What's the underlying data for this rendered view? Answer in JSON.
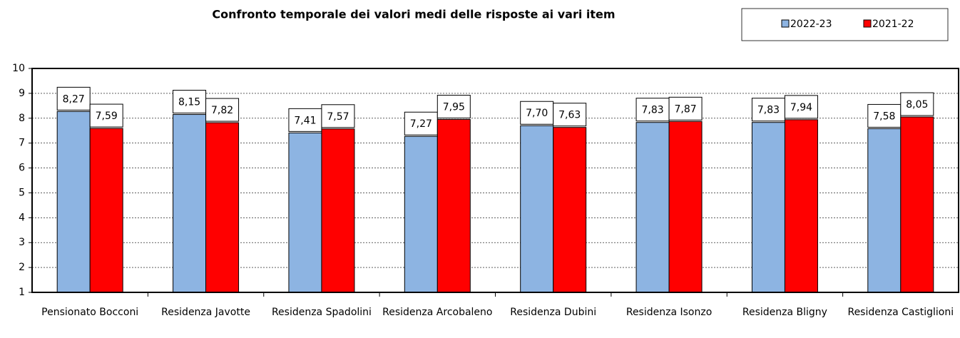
{
  "chart_data": {
    "type": "bar",
    "title": "Confronto temporale dei valori medi delle risposte ai vari item",
    "categories": [
      "Pensionato Bocconi",
      "Residenza Javotte",
      "Residenza Spadolini",
      "Residenza Arcobaleno",
      "Residenza Dubini",
      "Residenza Isonzo",
      "Residenza Bligny",
      "Residenza Castiglioni"
    ],
    "series": [
      {
        "name": "2022-23",
        "color": "#8db4e2",
        "values": [
          8.27,
          8.15,
          7.41,
          7.27,
          7.7,
          7.83,
          7.83,
          7.58
        ],
        "value_labels": [
          "8,27",
          "8,15",
          "7,41",
          "7,27",
          "7,70",
          "7,83",
          "7,83",
          "7,58"
        ]
      },
      {
        "name": "2021-22",
        "color": "#ff0000",
        "values": [
          7.59,
          7.82,
          7.57,
          7.95,
          7.63,
          7.87,
          7.94,
          8.05
        ],
        "value_labels": [
          "7,59",
          "7,82",
          "7,57",
          "7,95",
          "7,63",
          "7,87",
          "7,94",
          "8,05"
        ]
      }
    ],
    "ylim": [
      1,
      10
    ],
    "yticks": [
      1,
      2,
      3,
      4,
      5,
      6,
      7,
      8,
      9,
      10
    ],
    "grid": true,
    "legend": "top-right"
  }
}
